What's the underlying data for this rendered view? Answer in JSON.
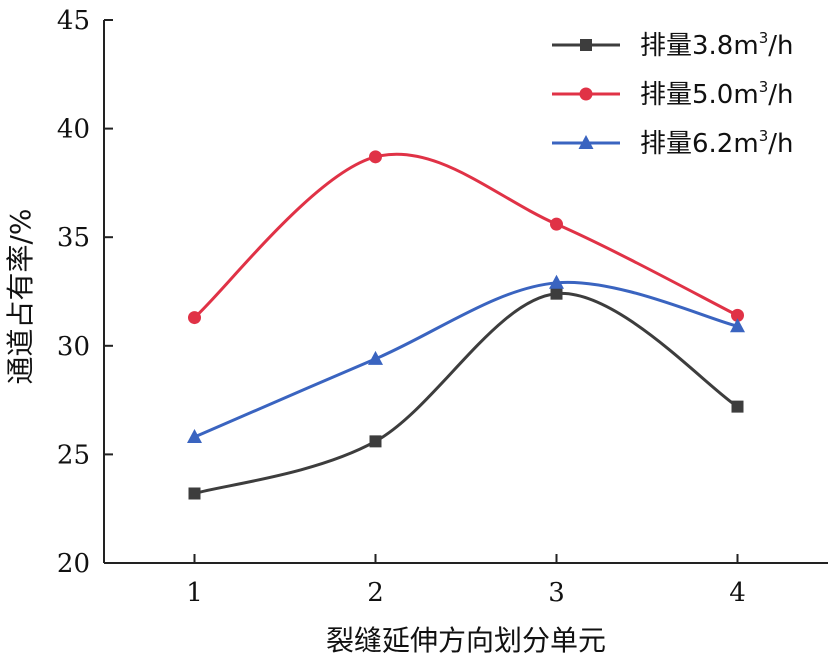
{
  "chart_data": {
    "type": "line",
    "title": "",
    "xlabel": "裂缝延伸方向划分单元",
    "ylabel": "通道占有率/%",
    "x": [
      1,
      2,
      3,
      4
    ],
    "xlim": [
      0.5,
      4.5
    ],
    "ylim": [
      20,
      45
    ],
    "yticks": [
      20,
      25,
      30,
      35,
      40,
      45
    ],
    "grid": false,
    "legend_position": "top-right",
    "series": [
      {
        "name_main": "排量3.8m",
        "name_sup": "3",
        "name_tail": "/h",
        "color": "#3d3d3d",
        "marker": "square",
        "values": [
          23.2,
          25.6,
          32.4,
          27.2
        ]
      },
      {
        "name_main": "排量5.0m",
        "name_sup": "3",
        "name_tail": "/h",
        "color": "#e03246",
        "marker": "circle",
        "values": [
          31.3,
          38.7,
          35.6,
          31.4
        ]
      },
      {
        "name_main": "排量6.2m",
        "name_sup": "3",
        "name_tail": "/h",
        "color": "#3a64c0",
        "marker": "triangle",
        "values": [
          25.8,
          29.4,
          32.9,
          30.9
        ]
      }
    ]
  }
}
